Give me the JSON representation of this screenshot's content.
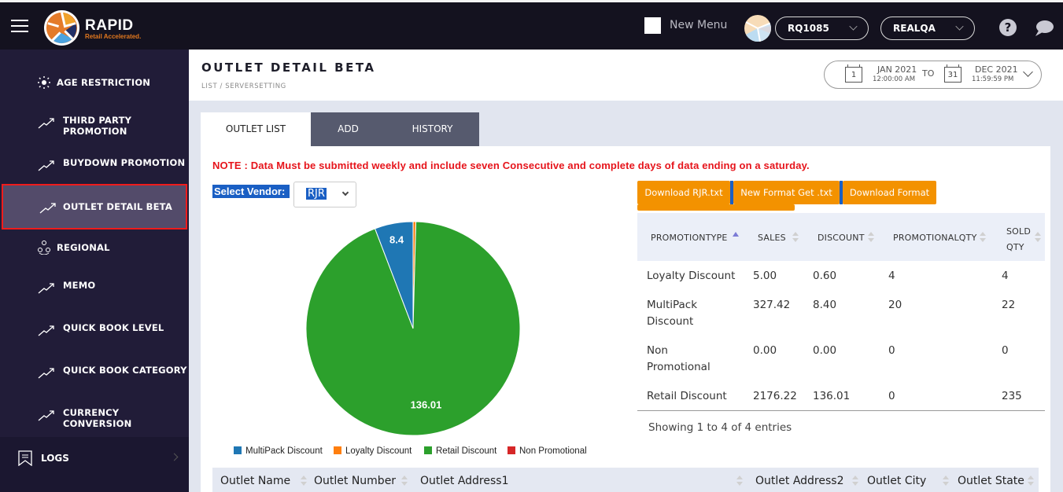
{
  "topbar": {
    "brand": "RAPID",
    "tagline": "Retail Accelerated.",
    "new_menu_label": "New Menu",
    "store_select": "RQ1085",
    "env_select": "REALQA",
    "help_icon": "?",
    "icons": [
      "hamburger-icon",
      "logo",
      "avatar",
      "chevron-down-icon",
      "help-icon",
      "chat-icon"
    ]
  },
  "sidebar": {
    "items": [
      {
        "label": "AGE RESTRICTION",
        "icon": "sparkle-icon"
      },
      {
        "label": "THIRD PARTY PROMOTION",
        "icon": "trend-icon"
      },
      {
        "label": "BUYDOWN PROMOTION",
        "icon": "trend-icon"
      },
      {
        "label": "OUTLET DETAIL BETA",
        "icon": "trend-icon",
        "active": true
      },
      {
        "label": "REGIONAL",
        "icon": "network-icon"
      },
      {
        "label": "MEMO",
        "icon": "trend-icon"
      },
      {
        "label": "QUICK BOOK LEVEL",
        "icon": "trend-icon"
      },
      {
        "label": "QUICK BOOK CATEGORY",
        "icon": "trend-icon"
      },
      {
        "label": "CURRENCY CONVERSION",
        "icon": "trend-icon"
      }
    ],
    "logs": {
      "label": "LOGS",
      "icon": "bookmark-icon"
    }
  },
  "header": {
    "title": "OUTLET DETAIL BETA",
    "breadcrumb": "LIST  / SERVERSETTING",
    "date_range": {
      "from_day": "1",
      "from_month": "JAN 2021",
      "from_time": "12:00:00 AM",
      "to_label": "TO",
      "to_day": "31",
      "to_month": "DEC 2021",
      "to_time": "11:59:59 PM"
    }
  },
  "tabs": [
    {
      "label": "OUTLET LIST",
      "active": true
    },
    {
      "label": "ADD",
      "active": false
    },
    {
      "label": "HISTORY",
      "active": false
    }
  ],
  "main": {
    "note": "NOTE : Data Must be submitted weekly and include seven Consecutive and complete days of data ending on a saturday.",
    "vendor_label": "Select Vendor:",
    "vendor_value": "RJR",
    "buttons": [
      "Download RJR.txt",
      "New Format Get .txt",
      "Download Format"
    ],
    "colors": {
      "button": "#f39200",
      "note": "#e6141b",
      "highlight": "#1a5fc4"
    }
  },
  "promo_table": {
    "columns": [
      "PROMOTIONTYPE",
      "SALES",
      "DISCOUNT",
      "PROMOTIONALQTY",
      "SOLD QTY"
    ],
    "rows": [
      [
        "Loyalty Discount",
        "5.00",
        "0.60",
        "4",
        "4"
      ],
      [
        "MultiPack Discount",
        "327.42",
        "8.40",
        "20",
        "22"
      ],
      [
        "Non Promotional",
        "0.00",
        "0.00",
        "0",
        "0"
      ],
      [
        "Retail Discount",
        "2176.22",
        "136.01",
        "0",
        "235"
      ]
    ],
    "info": "Showing 1 to 4 of 4 entries"
  },
  "chart_data": {
    "type": "pie",
    "title": "",
    "categories": [
      "MultiPack Discount",
      "Loyalty Discount",
      "Retail Discount",
      "Non Promotional"
    ],
    "values": [
      8.4,
      0.6,
      136.01,
      0
    ],
    "labels": [
      "8.4",
      "",
      "136.01",
      ""
    ],
    "colors": [
      "#1f77b4",
      "#ff7f0e",
      "#2ca02c",
      "#d62728"
    ],
    "legend_position": "bottom"
  },
  "outlet_table": {
    "columns": [
      "Outlet Name",
      "Outlet Number",
      "Outlet Address1",
      "Outlet Address2",
      "Outlet City",
      "Outlet State"
    ]
  }
}
